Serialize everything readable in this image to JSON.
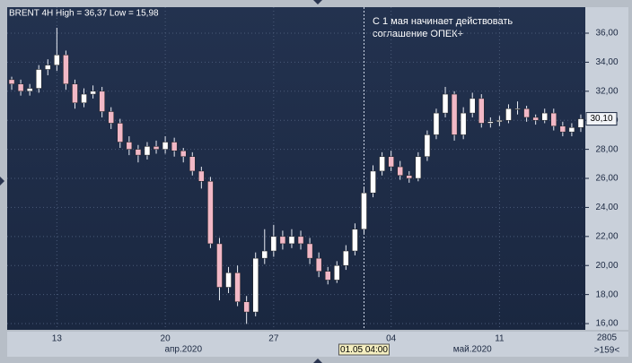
{
  "chart_data": {
    "type": "candlestick",
    "title": "BRENT 4H High = 36,37 Low = 15,98",
    "annotation": [
      "С 1 мая начинает действовать",
      "соглашение ОПЕК+"
    ],
    "categories": [
      null,
      null,
      null,
      null,
      null,
      "13",
      null,
      null,
      null,
      null,
      null,
      null,
      null,
      null,
      null,
      null,
      null,
      "20",
      null,
      null,
      null,
      null,
      null,
      null,
      null,
      null,
      null,
      null,
      null,
      "27",
      null,
      null,
      null,
      null,
      null,
      null,
      null,
      null,
      null,
      null,
      null,
      null,
      "04",
      null,
      null,
      null,
      null,
      null,
      null,
      null,
      null,
      null,
      null,
      null,
      "11",
      null,
      null,
      null,
      null,
      null,
      null,
      null,
      null,
      null
    ],
    "month_labels": [
      null,
      null,
      null,
      null,
      null,
      null,
      null,
      null,
      null,
      null,
      null,
      null,
      null,
      null,
      null,
      null,
      null,
      null,
      null,
      "апр.2020",
      null,
      null,
      null,
      null,
      null,
      null,
      null,
      null,
      null,
      null,
      null,
      null,
      null,
      null,
      null,
      null,
      null,
      null,
      null,
      null,
      null,
      null,
      null,
      null,
      null,
      null,
      null,
      null,
      null,
      null,
      null,
      "май.2020",
      null,
      null,
      null,
      null,
      null,
      null,
      null,
      null,
      null,
      null,
      null,
      null
    ],
    "crosshair_labels": [
      null,
      null,
      null,
      null,
      null,
      null,
      null,
      null,
      null,
      null,
      null,
      null,
      null,
      null,
      null,
      null,
      null,
      null,
      null,
      null,
      null,
      null,
      null,
      null,
      null,
      null,
      null,
      null,
      null,
      null,
      null,
      null,
      null,
      null,
      null,
      null,
      null,
      null,
      null,
      "01.05 04:00",
      null,
      null,
      null,
      null,
      null,
      null,
      null,
      null,
      null,
      null,
      null,
      null,
      null,
      null,
      null,
      null,
      null,
      null,
      null,
      null,
      null,
      null,
      null,
      null
    ],
    "open": [
      32.8,
      32.5,
      32.0,
      32.2,
      33.5,
      33.8,
      34.5,
      32.5,
      31.2,
      31.8,
      32.0,
      30.6,
      29.8,
      28.5,
      28.0,
      27.6,
      28.2,
      28.0,
      28.5,
      27.9,
      27.5,
      26.5,
      25.8,
      21.5,
      18.5,
      19.5,
      17.5,
      16.8,
      20.5,
      21.0,
      22.0,
      21.5,
      22.0,
      21.5,
      20.5,
      19.6,
      19.0,
      20.0,
      21.0,
      22.5,
      25.0,
      26.5,
      27.5,
      26.8,
      26.2,
      26.0,
      27.5,
      29.0,
      30.5,
      31.8,
      29.0,
      30.5,
      31.5,
      29.8,
      29.9,
      30.0,
      30.8,
      30.8,
      30.2,
      30.0,
      30.5,
      29.6,
      29.2,
      29.5
    ],
    "high": [
      33.0,
      32.8,
      32.5,
      33.8,
      34.2,
      36.37,
      34.8,
      32.8,
      32.2,
      32.4,
      32.3,
      30.9,
      30.1,
      28.9,
      28.3,
      28.5,
      28.6,
      28.9,
      28.8,
      28.1,
      27.8,
      26.8,
      26.1,
      21.9,
      19.9,
      20.0,
      17.9,
      20.9,
      22.5,
      22.8,
      22.4,
      22.5,
      22.4,
      21.9,
      20.9,
      19.9,
      20.3,
      21.4,
      22.9,
      25.4,
      26.9,
      27.8,
      27.9,
      27.2,
      26.5,
      27.8,
      29.3,
      30.8,
      32.3,
      32.0,
      30.9,
      31.9,
      31.8,
      30.2,
      30.3,
      31.1,
      31.3,
      31.0,
      30.4,
      30.8,
      30.8,
      29.9,
      29.8,
      30.4
    ],
    "low": [
      32.1,
      31.7,
      31.7,
      31.9,
      33.1,
      33.4,
      32.1,
      30.8,
      30.9,
      31.5,
      30.2,
      29.4,
      28.1,
      27.6,
      27.1,
      27.3,
      27.7,
      27.7,
      27.5,
      27.1,
      26.2,
      25.3,
      21.2,
      17.6,
      18.1,
      17.2,
      15.98,
      16.5,
      20.1,
      20.6,
      21.1,
      21.2,
      21.1,
      20.1,
      19.2,
      18.7,
      18.8,
      19.7,
      20.7,
      22.2,
      24.7,
      26.2,
      26.5,
      25.9,
      25.7,
      25.8,
      27.2,
      28.7,
      30.2,
      28.6,
      28.7,
      30.2,
      29.5,
      29.5,
      29.6,
      29.8,
      30.4,
      29.9,
      29.7,
      29.8,
      29.3,
      28.9,
      28.9,
      29.2
    ],
    "close": [
      32.5,
      32.0,
      32.2,
      33.5,
      33.8,
      34.5,
      32.5,
      31.2,
      31.8,
      32.0,
      30.6,
      29.8,
      28.5,
      28.0,
      27.6,
      28.2,
      28.0,
      28.5,
      27.9,
      27.5,
      26.5,
      25.8,
      21.5,
      18.5,
      19.5,
      17.5,
      16.8,
      20.5,
      21.0,
      22.0,
      21.5,
      22.0,
      21.5,
      20.5,
      19.6,
      19.0,
      20.0,
      21.0,
      22.5,
      25.0,
      26.5,
      27.5,
      26.8,
      26.2,
      26.0,
      27.5,
      29.0,
      30.5,
      31.8,
      29.0,
      30.5,
      31.5,
      29.8,
      29.9,
      30.0,
      30.8,
      30.8,
      30.2,
      30.0,
      30.5,
      29.6,
      29.2,
      29.5,
      30.1
    ],
    "up_color": "#ffffff",
    "down_color": "#f2b8c6",
    "ylim": [
      15.57,
      37.79
    ],
    "yticks": [
      {
        "value": 16,
        "label": "16,00"
      },
      {
        "value": 18,
        "label": "18,00"
      },
      {
        "value": 20,
        "label": "20,00"
      },
      {
        "value": 22,
        "label": "22,00"
      },
      {
        "value": 24,
        "label": "24,00"
      },
      {
        "value": 26,
        "label": "26,00"
      },
      {
        "value": 28,
        "label": "28,00"
      },
      {
        "value": 30,
        "label": "30,00"
      },
      {
        "value": 32,
        "label": "32,00"
      },
      {
        "value": 34,
        "label": "34,00"
      },
      {
        "value": 36,
        "label": "36,00"
      }
    ],
    "last_price": {
      "value": 30.1,
      "label": "30,10"
    },
    "corner_labels": [
      "2805",
      ">159<"
    ],
    "grid": true
  }
}
